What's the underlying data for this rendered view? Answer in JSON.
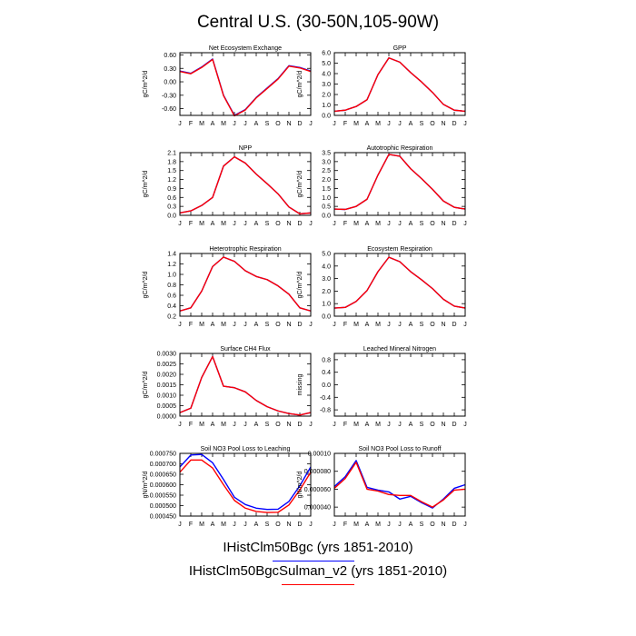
{
  "title": "Central U.S. (30-50N,105-90W)",
  "months": [
    "J",
    "F",
    "M",
    "A",
    "M",
    "J",
    "J",
    "A",
    "S",
    "O",
    "N",
    "D",
    "J"
  ],
  "legend": [
    {
      "label": "IHistClm50Bgc (yrs 1851-2010)",
      "color": "#0000ff"
    },
    {
      "label": "IHistClm50BgcSulman_v2 (yrs 1851-2010)",
      "color": "#ff0000"
    }
  ],
  "chart_data": [
    {
      "type": "line",
      "title": "Net Ecosystem Exchange",
      "ylabel": "gC/m^2/d",
      "ylim": [
        -0.75,
        0.65
      ],
      "yticks": [
        -0.6,
        -0.3,
        0.0,
        0.3,
        0.6
      ],
      "ytick_labels": [
        "-0.60",
        "-0.30",
        "0.00",
        "0.30",
        "0.60"
      ],
      "categories": [
        "J",
        "F",
        "M",
        "A",
        "M",
        "J",
        "J",
        "A",
        "S",
        "O",
        "N",
        "D",
        "J"
      ],
      "series": [
        {
          "name": "IHistClm50Bgc",
          "color": "#0000ff",
          "values": [
            0.24,
            0.19,
            0.33,
            0.51,
            -0.3,
            -0.75,
            -0.62,
            -0.35,
            -0.14,
            0.07,
            0.36,
            0.32,
            0.24
          ]
        },
        {
          "name": "IHistClm50BgcSulman_v2",
          "color": "#ff0000",
          "values": [
            0.23,
            0.18,
            0.32,
            0.5,
            -0.31,
            -0.76,
            -0.63,
            -0.36,
            -0.15,
            0.06,
            0.35,
            0.31,
            0.23
          ]
        }
      ]
    },
    {
      "type": "line",
      "title": "GPP",
      "ylabel": "gC/m^2/d",
      "ylim": [
        0.0,
        6.0
      ],
      "yticks": [
        0.0,
        1.0,
        2.0,
        3.0,
        4.0,
        5.0,
        6.0
      ],
      "ytick_labels": [
        "0.0",
        "1.0",
        "2.0",
        "3.0",
        "4.0",
        "5.0",
        "6.0"
      ],
      "categories": [
        "J",
        "F",
        "M",
        "A",
        "M",
        "J",
        "J",
        "A",
        "S",
        "O",
        "N",
        "D",
        "J"
      ],
      "series": [
        {
          "name": "IHistClm50Bgc",
          "color": "#0000ff",
          "values": [
            0.4,
            0.5,
            0.85,
            1.5,
            3.9,
            5.5,
            5.1,
            4.1,
            3.2,
            2.2,
            1.05,
            0.5,
            0.4
          ]
        },
        {
          "name": "IHistClm50BgcSulman_v2",
          "color": "#ff0000",
          "values": [
            0.4,
            0.5,
            0.85,
            1.5,
            3.9,
            5.5,
            5.1,
            4.1,
            3.2,
            2.2,
            1.05,
            0.5,
            0.4
          ]
        }
      ]
    },
    {
      "type": "line",
      "title": "NPP",
      "ylabel": "gC/m^2/d",
      "ylim": [
        0.0,
        2.1
      ],
      "yticks": [
        0.0,
        0.3,
        0.6,
        0.9,
        1.2,
        1.5,
        1.8,
        2.1
      ],
      "ytick_labels": [
        "0.0",
        "0.3",
        "0.6",
        "0.9",
        "1.2",
        "1.5",
        "1.8",
        "2.1"
      ],
      "categories": [
        "J",
        "F",
        "M",
        "A",
        "M",
        "J",
        "J",
        "A",
        "S",
        "O",
        "N",
        "D",
        "J"
      ],
      "series": [
        {
          "name": "IHistClm50Bgc",
          "color": "#0000ff",
          "values": [
            0.08,
            0.15,
            0.33,
            0.6,
            1.65,
            1.96,
            1.75,
            1.38,
            1.06,
            0.72,
            0.28,
            0.05,
            0.08
          ]
        },
        {
          "name": "IHistClm50BgcSulman_v2",
          "color": "#ff0000",
          "values": [
            0.08,
            0.15,
            0.33,
            0.6,
            1.65,
            1.96,
            1.75,
            1.38,
            1.06,
            0.72,
            0.28,
            0.05,
            0.08
          ]
        }
      ]
    },
    {
      "type": "line",
      "title": "Autotrophic Respiration",
      "ylabel": "gC/m^2/d",
      "ylim": [
        0.0,
        3.5
      ],
      "yticks": [
        0.0,
        0.5,
        1.0,
        1.5,
        2.0,
        2.5,
        3.0,
        3.5
      ],
      "ytick_labels": [
        "0.0",
        "0.5",
        "1.0",
        "1.5",
        "2.0",
        "2.5",
        "3.0",
        "3.5"
      ],
      "categories": [
        "J",
        "F",
        "M",
        "A",
        "M",
        "J",
        "J",
        "A",
        "S",
        "O",
        "N",
        "D",
        "J"
      ],
      "series": [
        {
          "name": "IHistClm50Bgc",
          "color": "#0000ff",
          "values": [
            0.35,
            0.33,
            0.5,
            0.9,
            2.25,
            3.4,
            3.3,
            2.6,
            2.05,
            1.45,
            0.8,
            0.45,
            0.35
          ]
        },
        {
          "name": "IHistClm50BgcSulman_v2",
          "color": "#ff0000",
          "values": [
            0.35,
            0.33,
            0.5,
            0.9,
            2.25,
            3.4,
            3.3,
            2.6,
            2.05,
            1.45,
            0.8,
            0.45,
            0.35
          ]
        }
      ]
    },
    {
      "type": "line",
      "title": "Heterotrophic Respiration",
      "ylabel": "gC/m^2/d",
      "ylim": [
        0.2,
        1.4
      ],
      "yticks": [
        0.2,
        0.4,
        0.6,
        0.8,
        1.0,
        1.2,
        1.4
      ],
      "ytick_labels": [
        "0.2",
        "0.4",
        "0.6",
        "0.8",
        "1.0",
        "1.2",
        "1.4"
      ],
      "categories": [
        "J",
        "F",
        "M",
        "A",
        "M",
        "J",
        "J",
        "A",
        "S",
        "O",
        "N",
        "D",
        "J"
      ],
      "series": [
        {
          "name": "IHistClm50Bgc",
          "color": "#0000ff",
          "values": [
            0.3,
            0.36,
            0.68,
            1.15,
            1.33,
            1.25,
            1.07,
            0.96,
            0.9,
            0.78,
            0.62,
            0.36,
            0.3
          ]
        },
        {
          "name": "IHistClm50BgcSulman_v2",
          "color": "#ff0000",
          "values": [
            0.3,
            0.36,
            0.68,
            1.15,
            1.33,
            1.25,
            1.07,
            0.96,
            0.9,
            0.78,
            0.62,
            0.36,
            0.3
          ]
        }
      ]
    },
    {
      "type": "line",
      "title": "Ecosystem Respiration",
      "ylabel": "gC/m^2/d",
      "ylim": [
        0.0,
        5.0
      ],
      "yticks": [
        0.0,
        1.0,
        2.0,
        3.0,
        4.0,
        5.0
      ],
      "ytick_labels": [
        "0.0",
        "1.0",
        "2.0",
        "3.0",
        "4.0",
        "5.0"
      ],
      "categories": [
        "J",
        "F",
        "M",
        "A",
        "M",
        "J",
        "J",
        "A",
        "S",
        "O",
        "N",
        "D",
        "J"
      ],
      "series": [
        {
          "name": "IHistClm50Bgc",
          "color": "#0000ff",
          "values": [
            0.65,
            0.7,
            1.18,
            2.05,
            3.55,
            4.7,
            4.35,
            3.55,
            2.9,
            2.2,
            1.35,
            0.8,
            0.65
          ]
        },
        {
          "name": "IHistClm50BgcSulman_v2",
          "color": "#ff0000",
          "values": [
            0.65,
            0.7,
            1.18,
            2.05,
            3.55,
            4.7,
            4.35,
            3.55,
            2.9,
            2.2,
            1.35,
            0.8,
            0.65
          ]
        }
      ]
    },
    {
      "type": "line",
      "title": "Surface CH4 Flux",
      "ylabel": "gC/m^2/d",
      "ylim": [
        0.0,
        0.003
      ],
      "yticks": [
        0.0,
        0.0005,
        0.001,
        0.0015,
        0.002,
        0.0025,
        0.003
      ],
      "ytick_labels": [
        "0.0000",
        "0.0005",
        "0.0010",
        "0.0015",
        "0.0020",
        "0.0025",
        "0.0030"
      ],
      "categories": [
        "J",
        "F",
        "M",
        "A",
        "M",
        "J",
        "J",
        "A",
        "S",
        "O",
        "N",
        "D",
        "J"
      ],
      "series": [
        {
          "name": "IHistClm50Bgc",
          "color": "#0000ff",
          "values": [
            0.00017,
            0.00038,
            0.00185,
            0.00285,
            0.00143,
            0.00136,
            0.00116,
            0.00075,
            0.00045,
            0.00025,
            0.00012,
            5e-05,
            0.00017
          ]
        },
        {
          "name": "IHistClm50BgcSulman_v2",
          "color": "#ff0000",
          "values": [
            0.00017,
            0.00038,
            0.00185,
            0.00285,
            0.00143,
            0.00136,
            0.00116,
            0.00075,
            0.00045,
            0.00025,
            0.00012,
            5e-05,
            0.00017
          ]
        }
      ]
    },
    {
      "type": "line",
      "title": "Leached Mineral Nitrogen",
      "ylabel": "missing",
      "ylim": [
        -1.0,
        1.0
      ],
      "yticks": [
        -0.8,
        -0.4,
        0.0,
        0.4,
        0.8
      ],
      "ytick_labels": [
        "-0.8",
        "-0.4",
        "0.0",
        "0.4",
        "0.8"
      ],
      "categories": [
        "J",
        "F",
        "M",
        "A",
        "M",
        "J",
        "J",
        "A",
        "S",
        "O",
        "N",
        "D",
        "J"
      ],
      "series": []
    },
    {
      "type": "line",
      "title": "Soil NO3 Pool Loss to Leaching",
      "ylabel": "gN/m^2/d",
      "ylim": [
        0.00045,
        0.00075
      ],
      "yticks": [
        0.00045,
        0.0005,
        0.00055,
        0.0006,
        0.00065,
        0.0007,
        0.00075
      ],
      "ytick_labels": [
        "0.000450",
        "0.000500",
        "0.000550",
        "0.000600",
        "0.000650",
        "0.000700",
        "0.000750"
      ],
      "categories": [
        "J",
        "F",
        "M",
        "A",
        "M",
        "J",
        "J",
        "A",
        "S",
        "O",
        "N",
        "D",
        "J"
      ],
      "series": [
        {
          "name": "IHistClm50Bgc",
          "color": "#0000ff",
          "values": [
            0.000685,
            0.000742,
            0.000745,
            0.000705,
            0.000625,
            0.00054,
            0.000505,
            0.000488,
            0.000482,
            0.000483,
            0.00052,
            0.000595,
            0.000685
          ]
        },
        {
          "name": "IHistClm50BgcSulman_v2",
          "color": "#ff0000",
          "values": [
            0.00066,
            0.000718,
            0.000718,
            0.00068,
            0.0006,
            0.000525,
            0.000488,
            0.000472,
            0.000467,
            0.000468,
            0.000503,
            0.000575,
            0.00066
          ]
        }
      ]
    },
    {
      "type": "line",
      "title": "Soil NO3 Pool Loss to Runoff",
      "ylabel": "gN/m^2/d",
      "ylim": [
        3e-05,
        0.0001
      ],
      "yticks": [
        4e-05,
        6e-05,
        8e-05,
        0.0001
      ],
      "ytick_labels": [
        "0.000040",
        "0.000060",
        "0.000080",
        "0.00010"
      ],
      "categories": [
        "J",
        "F",
        "M",
        "A",
        "M",
        "J",
        "J",
        "A",
        "S",
        "O",
        "N",
        "D",
        "J"
      ],
      "series": [
        {
          "name": "IHistClm50Bgc",
          "color": "#0000ff",
          "values": [
            6.3e-05,
            7.4e-05,
            9.2e-05,
            6.2e-05,
            5.9e-05,
            5.7e-05,
            4.9e-05,
            5.2e-05,
            4.5e-05,
            3.9e-05,
            4.9e-05,
            6.1e-05,
            6.5e-05
          ]
        },
        {
          "name": "IHistClm50BgcSulman_v2",
          "color": "#ff0000",
          "values": [
            6.1e-05,
            7.2e-05,
            9e-05,
            6e-05,
            5.8e-05,
            5.4e-05,
            5.3e-05,
            5.3e-05,
            4.6e-05,
            4e-05,
            4.8e-05,
            5.9e-05,
            6e-05
          ]
        }
      ]
    }
  ]
}
